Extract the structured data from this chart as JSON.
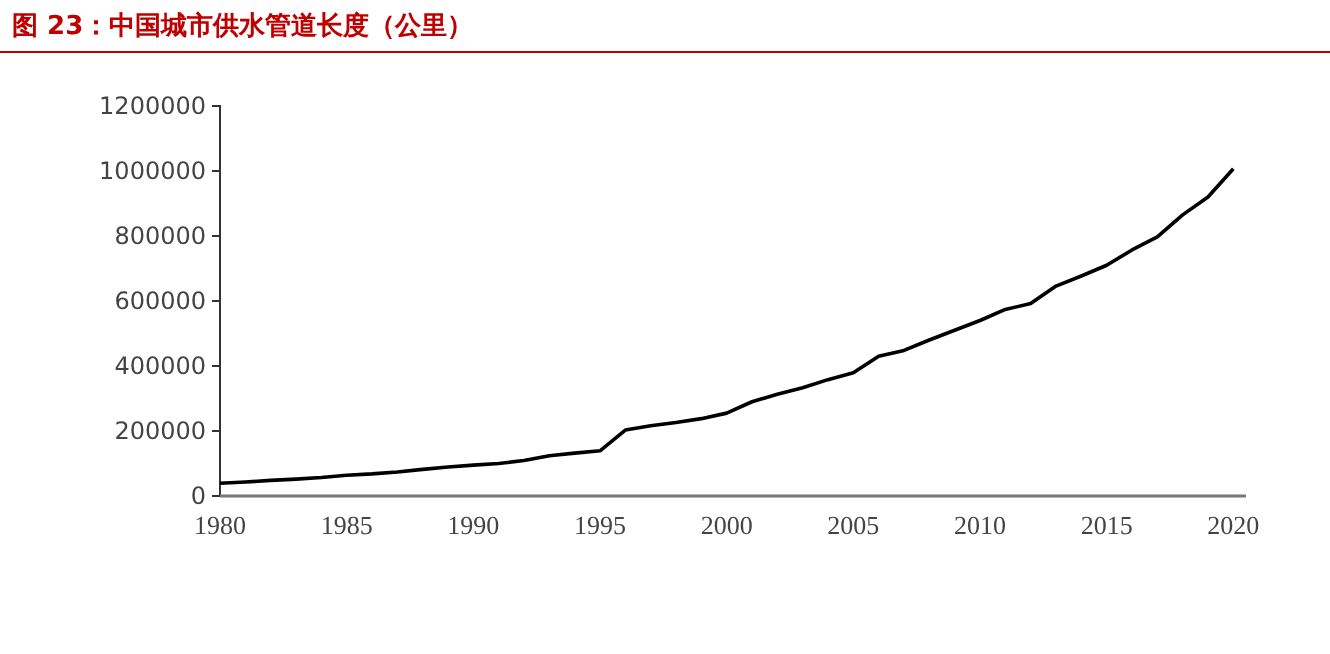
{
  "chart_data": {
    "type": "line",
    "title": "图 23：中国城市供水管道长度（公里）",
    "x": [
      1980,
      1981,
      1982,
      1983,
      1984,
      1985,
      1986,
      1987,
      1988,
      1989,
      1990,
      1991,
      1992,
      1993,
      1994,
      1995,
      1996,
      1997,
      1998,
      1999,
      2000,
      2001,
      2002,
      2003,
      2004,
      2005,
      2006,
      2007,
      2008,
      2009,
      2010,
      2011,
      2012,
      2013,
      2014,
      2015,
      2016,
      2017,
      2018,
      2019,
      2020
    ],
    "series": [
      {
        "color": "#000000",
        "values": [
          39000,
          43000,
          48000,
          52000,
          57000,
          64000,
          68000,
          74000,
          82000,
          89000,
          95000,
          100000,
          109000,
          124000,
          132000,
          139000,
          203000,
          216000,
          226000,
          238000,
          255000,
          290000,
          313000,
          333000,
          358000,
          379000,
          430000,
          448000,
          480000,
          510000,
          540000,
          574000,
          592000,
          646000,
          677000,
          710000,
          757000,
          797000,
          865000,
          920000,
          1007000
        ]
      }
    ],
    "xlim": [
      1980,
      2020.5
    ],
    "xticks": [
      1980,
      1985,
      1990,
      1995,
      2000,
      2005,
      2010,
      2015,
      2020
    ],
    "ylim": [
      0,
      1200000
    ],
    "yticks": [
      0,
      200000,
      400000,
      600000,
      800000,
      1000000,
      1200000
    ],
    "grid": false,
    "marker": "none",
    "line_style": "solid"
  }
}
